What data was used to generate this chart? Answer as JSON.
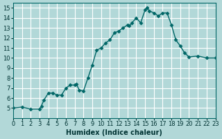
{
  "xlabel": "Humidex (Indice chaleur)",
  "ylabel": "",
  "background_color": "#b2d8d8",
  "grid_color": "#ffffff",
  "line_color": "#006666",
  "marker_color": "#006666",
  "xlim": [
    0,
    23
  ],
  "ylim": [
    4,
    15.5
  ],
  "yticks": [
    5,
    6,
    7,
    8,
    9,
    10,
    11,
    12,
    13,
    14,
    15
  ],
  "xticks": [
    0,
    1,
    2,
    3,
    4,
    5,
    6,
    7,
    8,
    9,
    10,
    11,
    12,
    13,
    14,
    15,
    16,
    17,
    18,
    19,
    20,
    21,
    22,
    23
  ],
  "x": [
    0,
    1,
    2,
    3,
    3.2,
    3.5,
    4,
    4.5,
    5,
    5.5,
    6,
    6.5,
    7,
    7.2,
    7.5,
    8,
    8.5,
    9,
    9.5,
    10,
    10.5,
    11,
    11.5,
    12,
    12.5,
    13,
    13.2,
    13.5,
    14,
    14.5,
    15,
    15.2,
    15.5,
    16,
    16.5,
    17,
    17.5,
    18,
    18.5,
    19,
    19.5,
    20,
    21,
    22,
    23
  ],
  "y": [
    5.0,
    5.1,
    4.9,
    4.9,
    5.2,
    5.8,
    6.5,
    6.5,
    6.3,
    6.3,
    7.0,
    7.3,
    7.3,
    7.4,
    6.8,
    6.7,
    8.0,
    9.3,
    10.8,
    11.0,
    11.5,
    11.8,
    12.5,
    12.7,
    13.0,
    13.3,
    13.2,
    13.5,
    14.0,
    13.5,
    14.8,
    15.0,
    14.7,
    14.5,
    14.2,
    14.5,
    14.5,
    13.3,
    11.8,
    11.2,
    10.5,
    10.1,
    10.2,
    10.0,
    10.0
  ]
}
